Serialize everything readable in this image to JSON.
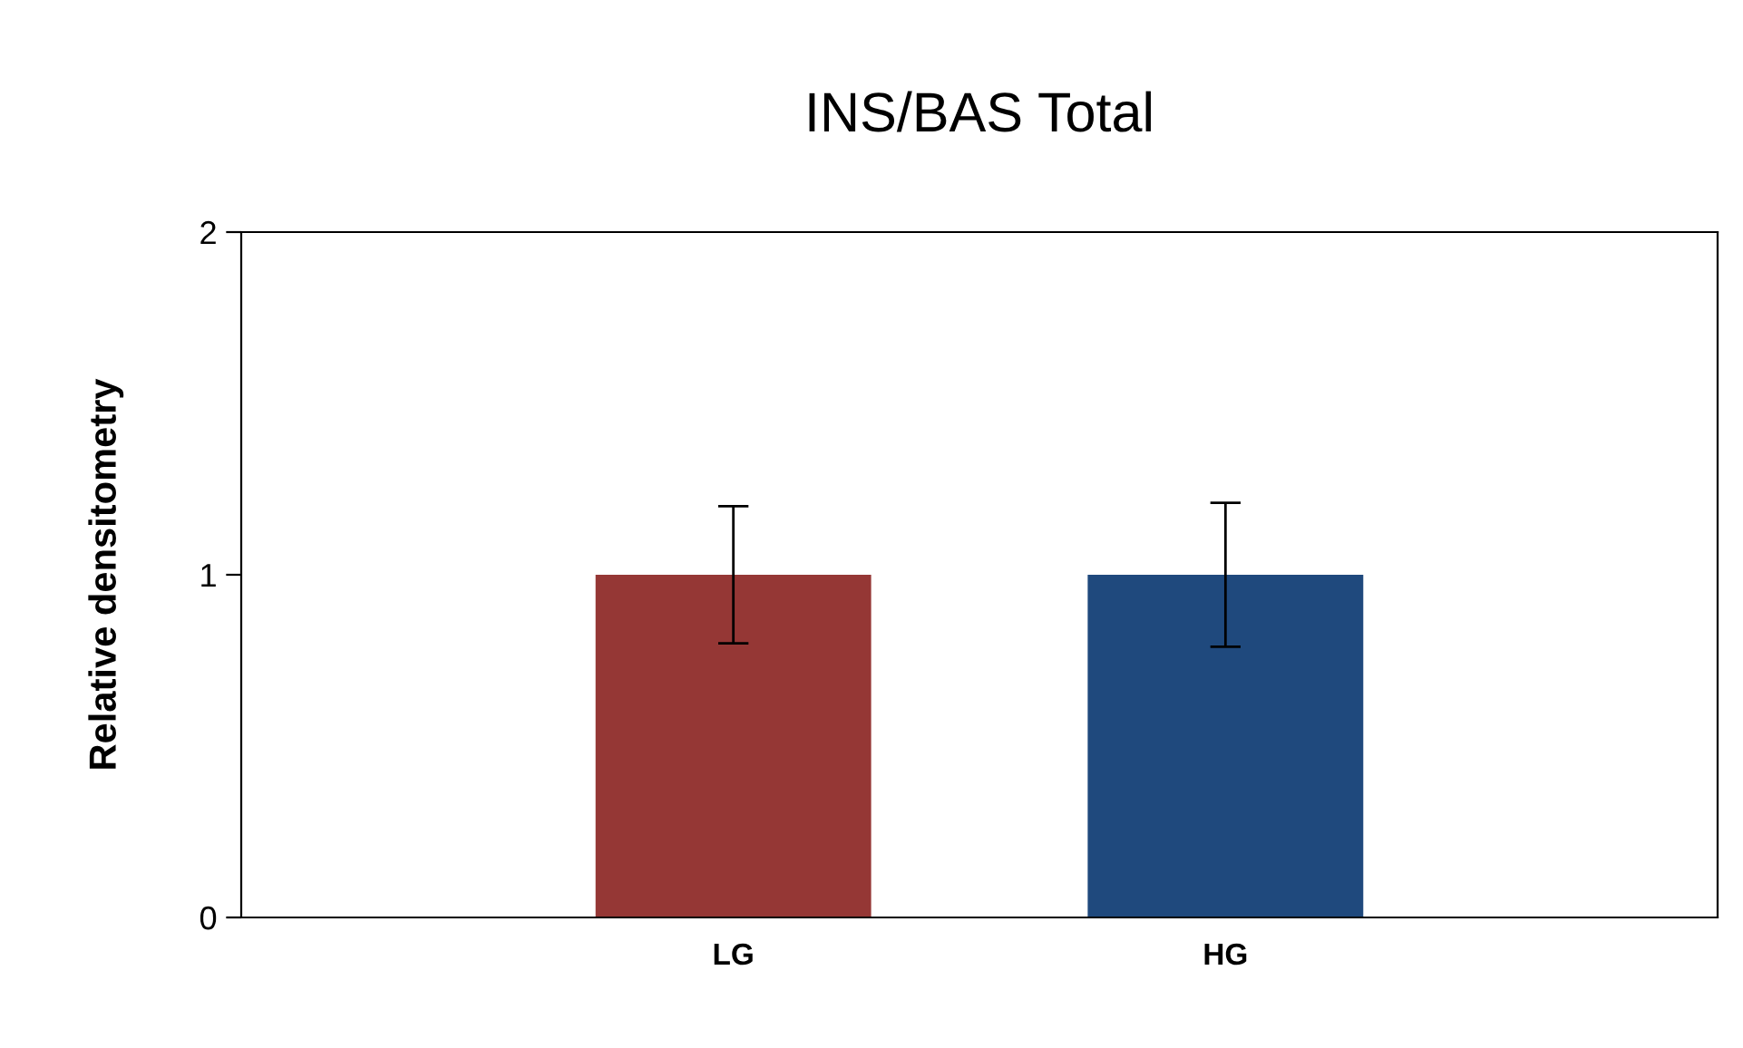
{
  "chart_data": {
    "type": "bar",
    "title": "INS/BAS Total",
    "ylabel": "Relative densitometry",
    "categories": [
      "LG",
      "HG"
    ],
    "values": [
      1.0,
      1.0
    ],
    "colors": [
      "#953735",
      "#1f497d"
    ],
    "errors": [
      0.2,
      0.21
    ],
    "ylim": [
      0,
      2
    ],
    "yticks": [
      0,
      1,
      2
    ],
    "grid": false,
    "legend": false
  }
}
